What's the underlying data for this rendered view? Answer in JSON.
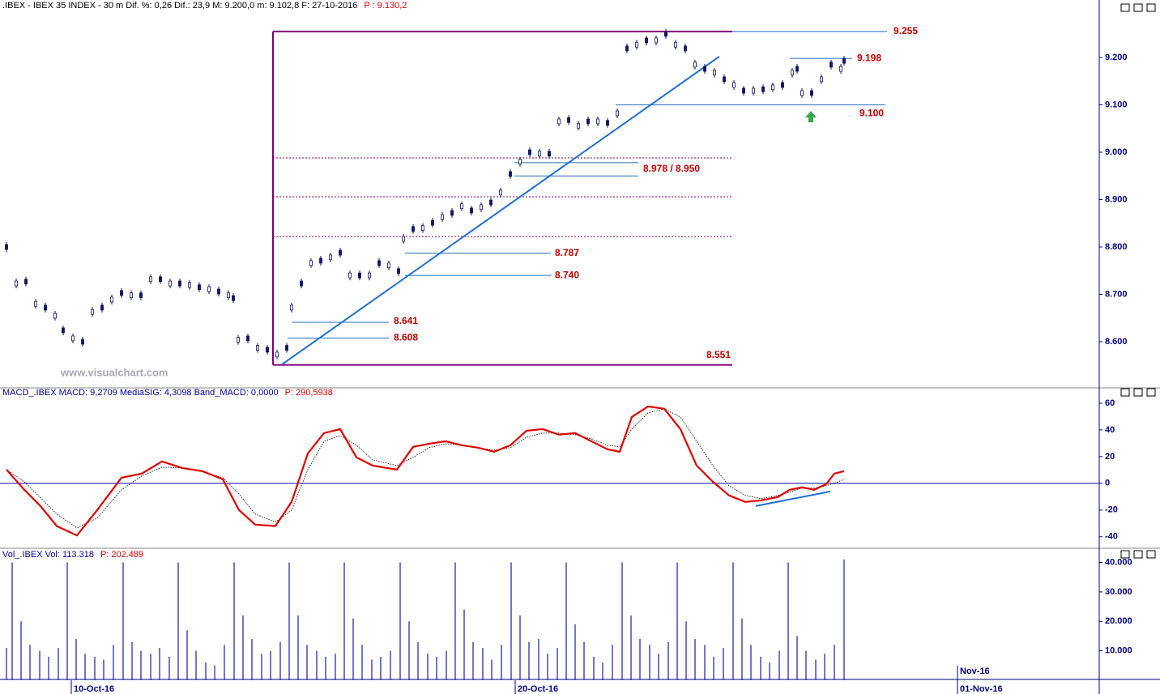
{
  "chart_data": [
    {
      "type": "candlestick",
      "title": ".IBEX - IBEX 35 INDEX - 30 m  Dif. %: 0,26  Dif.: 23,9  M: 9.200,0  m: 9.102,8  F: 27-10-2016",
      "title_extra": "P : 9.130,2",
      "watermark": "www.visualchart.com",
      "color": "#101060",
      "xlim": [
        0,
        1357
      ],
      "ylim": [
        8500,
        9300
      ],
      "yticks": [
        {
          "value": 8600,
          "label": "8.600"
        },
        {
          "value": 8700,
          "label": "8.700"
        },
        {
          "value": 8800,
          "label": "8.800"
        },
        {
          "value": 8900,
          "label": "8.900"
        },
        {
          "value": 9000,
          "label": "9.000"
        },
        {
          "value": 9100,
          "label": "9.100"
        },
        {
          "value": 9200,
          "label": "9.200"
        }
      ],
      "x": [
        8,
        20,
        32,
        44,
        56,
        68,
        78,
        90,
        102,
        114,
        126,
        138,
        150,
        162,
        174,
        186,
        198,
        210,
        222,
        234,
        246,
        258,
        270,
        282,
        288,
        294,
        306,
        318,
        330,
        342,
        354,
        360,
        372,
        384,
        396,
        408,
        420,
        432,
        444,
        456,
        468,
        480,
        492,
        498,
        510,
        522,
        534,
        546,
        558,
        570,
        582,
        594,
        606,
        618,
        630,
        642,
        654,
        666,
        678,
        690,
        702,
        714,
        726,
        738,
        750,
        762,
        774,
        786,
        798,
        810,
        822,
        834,
        846,
        858,
        870,
        882,
        894,
        906,
        918,
        930,
        942,
        954,
        966,
        978,
        984,
        990,
        1002,
        1014,
        1026,
        1038,
        1042
      ],
      "values": [
        8800,
        8723,
        8727,
        8680,
        8672,
        8655,
        8624,
        8607,
        8600,
        8663,
        8672,
        8689,
        8703,
        8698,
        8698,
        8732,
        8732,
        8723,
        8723,
        8720,
        8715,
        8711,
        8706,
        8698,
        8692,
        8604,
        8607,
        8587,
        8583,
        8573,
        8587,
        8672,
        8723,
        8766,
        8771,
        8778,
        8788,
        8740,
        8740,
        8740,
        8766,
        8761,
        8749,
        8817,
        8838,
        8840,
        8851,
        8863,
        8872,
        8886,
        8877,
        8884,
        8894,
        8915,
        8954,
        8980,
        9000,
        8997,
        8997,
        9065,
        9068,
        9056,
        9065,
        9065,
        9062,
        9082,
        9219,
        9227,
        9236,
        9236,
        9250,
        9227,
        9219,
        9185,
        9176,
        9168,
        9154,
        9142,
        9130,
        9130,
        9133,
        9137,
        9142,
        9168,
        9176,
        9125,
        9125,
        9154,
        9185,
        9176,
        9193
      ],
      "annotations": [
        {
          "label": "9.255",
          "value": 9255,
          "x1": 904,
          "x2": 1095
        },
        {
          "label": "9.198",
          "value": 9198,
          "x1": 975,
          "x2": 1052
        },
        {
          "label": "9.100",
          "value": 9100,
          "x1": 760,
          "x2": 1093
        },
        {
          "label": "8.978 / 8.950",
          "values": [
            8978,
            8950
          ],
          "x1": 635,
          "x2": 788
        },
        {
          "label": "8.787",
          "value": 8787,
          "x1": 500,
          "x2": 680
        },
        {
          "label": "8.740",
          "value": 8740,
          "x1": 500,
          "x2": 680
        },
        {
          "label": "8.641",
          "value": 8641,
          "x1": 360,
          "x2": 480
        },
        {
          "label": "8.608",
          "value": 8608,
          "x1": 355,
          "x2": 480
        },
        {
          "label": "8.551",
          "value": 8551,
          "x1": 337,
          "x2": 904
        }
      ],
      "box": {
        "x1": 337,
        "x2": 904
      },
      "levels": [
        8988,
        8906,
        8822
      ],
      "trendlines": [
        {
          "x": [
            348,
            888
          ],
          "values": [
            8552,
            9202
          ]
        }
      ]
    },
    {
      "type": "line",
      "title": "MACD_.IBEX MACD: 9,2709 MediaSIG: 4,3098 Band_MACD: 0,0000",
      "title_extra": "P: 290,5938",
      "xlim": [
        0,
        1357
      ],
      "ylim": [
        -48,
        66
      ],
      "yticks": [
        -40,
        -20,
        0,
        20,
        40,
        60
      ],
      "band": 0,
      "x": [
        8,
        30,
        50,
        70,
        95,
        120,
        150,
        175,
        200,
        225,
        250,
        275,
        295,
        315,
        340,
        360,
        380,
        400,
        420,
        440,
        460,
        490,
        510,
        530,
        550,
        570,
        590,
        610,
        630,
        650,
        670,
        690,
        710,
        730,
        750,
        765,
        780,
        800,
        820,
        840,
        860,
        880,
        900,
        920,
        940,
        960,
        975,
        990,
        1005,
        1020,
        1030,
        1042
      ],
      "series": [
        {
          "name": "MACD",
          "color": "#e00000",
          "values": [
            10.3,
            -4.8,
            -17,
            -32,
            -39,
            -20,
            4.2,
            7.3,
            16.4,
            11.5,
            9.1,
            3,
            -20,
            -30.9,
            -32,
            -13.9,
            22.4,
            37.6,
            40.6,
            19.4,
            13.3,
            10.3,
            27.3,
            29.7,
            31.5,
            28.5,
            26.7,
            23.6,
            28.5,
            39.4,
            40.6,
            36.4,
            37.6,
            31.5,
            25.5,
            23.6,
            49.7,
            57.6,
            55.8,
            40.6,
            13.3,
            1.2,
            -9.1,
            -13.9,
            -12.7,
            -10.3,
            -4.8,
            -3,
            -4.8,
            -0.6,
            7.3,
            9.1
          ]
        },
        {
          "name": "MediaSIG",
          "color": "#000000",
          "values": [
            10.3,
            1.2,
            -10.9,
            -23,
            -33.3,
            -26,
            -4.8,
            5.5,
            12.1,
            11.5,
            8.5,
            4.2,
            -7.9,
            -23,
            -29,
            -20,
            10.3,
            31.5,
            35.8,
            28.5,
            17.6,
            13.3,
            19.4,
            26.7,
            29.7,
            28.5,
            26.7,
            24.8,
            26.7,
            34.5,
            37.6,
            37.6,
            36.4,
            33.3,
            28.5,
            27.3,
            40.6,
            52.7,
            55.8,
            49.7,
            31.5,
            13.3,
            -1.8,
            -9.1,
            -11.5,
            -9.1,
            -6.7,
            -3.6,
            -3.6,
            -1.8,
            0,
            3
          ]
        }
      ],
      "trendlines": [
        {
          "x": [
            933,
            1025
          ],
          "values": [
            -17,
            -6.1
          ]
        }
      ]
    },
    {
      "type": "bar",
      "title": "Vol_.IBEX Vol: 113.318",
      "title_extra": "P: 202.489",
      "color": "#1a1aa8",
      "xlim": [
        0,
        1357
      ],
      "ylim": [
        0,
        44000
      ],
      "yticks": [
        {
          "value": 10000,
          "label": "10.000"
        },
        {
          "value": 20000,
          "label": "20.000"
        },
        {
          "value": 30000,
          "label": "30.000"
        },
        {
          "value": 40000,
          "label": "40.000"
        }
      ],
      "xticks": [
        {
          "value": 88,
          "label": "10-Oct-16"
        },
        {
          "value": 636,
          "label": "20-Oct-16"
        },
        {
          "value": 1182,
          "label": "01-Nov-16"
        }
      ],
      "month_ticks": [
        {
          "value": 1182,
          "label": "Nov-16"
        }
      ],
      "x": [
        8,
        15,
        26,
        37,
        49,
        60,
        72,
        83,
        94,
        105,
        117,
        128,
        140,
        152,
        163,
        174,
        186,
        197,
        209,
        220,
        231,
        242,
        254,
        265,
        277,
        289,
        300,
        311,
        323,
        334,
        346,
        357,
        368,
        379,
        391,
        402,
        414,
        425,
        436,
        447,
        459,
        470,
        482,
        494,
        505,
        516,
        528,
        539,
        551,
        562,
        573,
        584,
        596,
        607,
        619,
        631,
        642,
        653,
        665,
        676,
        688,
        699,
        710,
        721,
        733,
        744,
        756,
        768,
        779,
        790,
        802,
        813,
        825,
        836,
        847,
        858,
        870,
        881,
        893,
        905,
        916,
        927,
        939,
        950,
        962,
        973,
        984,
        995,
        1007,
        1018,
        1030,
        1042
      ],
      "values": [
        11000,
        40000,
        20000,
        12000,
        10000,
        8000,
        11000,
        40000,
        14000,
        9000,
        8000,
        7000,
        12000,
        40000,
        13000,
        10000,
        9000,
        11000,
        8000,
        40000,
        17000,
        10000,
        6000,
        5000,
        12000,
        40000,
        22000,
        14000,
        9000,
        10000,
        13000,
        40000,
        22000,
        12000,
        10000,
        8000,
        9000,
        40000,
        21000,
        12000,
        7000,
        8000,
        10000,
        40000,
        20000,
        13000,
        9000,
        8000,
        10000,
        40000,
        24000,
        13000,
        11000,
        7000,
        12000,
        40000,
        22000,
        13000,
        14000,
        9000,
        11000,
        40000,
        19000,
        13000,
        8000,
        6000,
        12000,
        40000,
        22000,
        14000,
        12000,
        9000,
        13000,
        40000,
        20000,
        14000,
        12000,
        8000,
        11000,
        40000,
        21000,
        12000,
        8000,
        6000,
        10000,
        40000,
        15000,
        10000,
        7000,
        9000,
        12000,
        41000
      ]
    }
  ]
}
